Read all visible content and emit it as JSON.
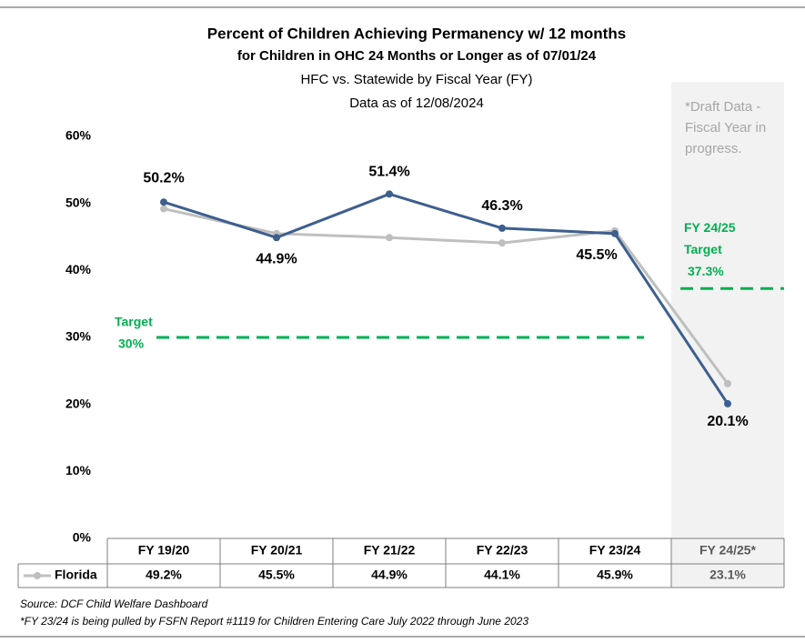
{
  "chart_data": {
    "type": "line",
    "title": "Percent of Children Achieving Permanency w/ 12 months",
    "subtitle": "for Children in OHC 24 Months or Longer as of 07/01/24",
    "subtitle2": "HFC vs. Statewide by Fiscal Year (FY)",
    "subtitle3": "Data as of 12/08/2024",
    "categories": [
      "FY 19/20",
      "FY 20/21",
      "FY 21/22",
      "FY 22/23",
      "FY 23/24",
      "FY 24/25*"
    ],
    "series": [
      {
        "color": "#3d5f8f",
        "values": [
          50.2,
          44.9,
          51.4,
          46.3,
          45.5,
          20.1
        ],
        "value_labels": [
          "50.2%",
          "44.9%",
          "51.4%",
          "46.3%",
          "45.5%",
          "20.1%"
        ]
      },
      {
        "name": "Florida",
        "color": "#bfbfbf",
        "values": [
          49.2,
          45.5,
          44.9,
          44.1,
          45.9,
          23.1
        ],
        "value_labels": [
          "49.2%",
          "45.5%",
          "44.9%",
          "44.1%",
          "45.9%",
          "23.1%"
        ]
      }
    ],
    "ylim": [
      0,
      60
    ],
    "yticks": [
      {
        "value": 0,
        "label": "0%"
      },
      {
        "value": 10,
        "label": "10%"
      },
      {
        "value": 20,
        "label": "20%"
      },
      {
        "value": 30,
        "label": "30%"
      },
      {
        "value": 40,
        "label": "40%"
      },
      {
        "value": 50,
        "label": "50%"
      },
      {
        "value": 60,
        "label": "60%"
      }
    ],
    "targets": [
      {
        "value": 30,
        "label": [
          "Target",
          "30%"
        ],
        "color": "#00b050"
      },
      {
        "value": 37.3,
        "label": [
          "FY 24/25",
          "Target",
          "37.3%"
        ],
        "color": "#00b050"
      }
    ],
    "draft_note": [
      "*Draft Data -",
      "Fiscal Year in",
      "progress."
    ],
    "footnotes": [
      "Source: DCF Child Welfare Dashboard",
      "*FY 23/24 is being pulled by FSFN Report #1119 for Children Entering Care July 2022 through June 2023"
    ]
  }
}
